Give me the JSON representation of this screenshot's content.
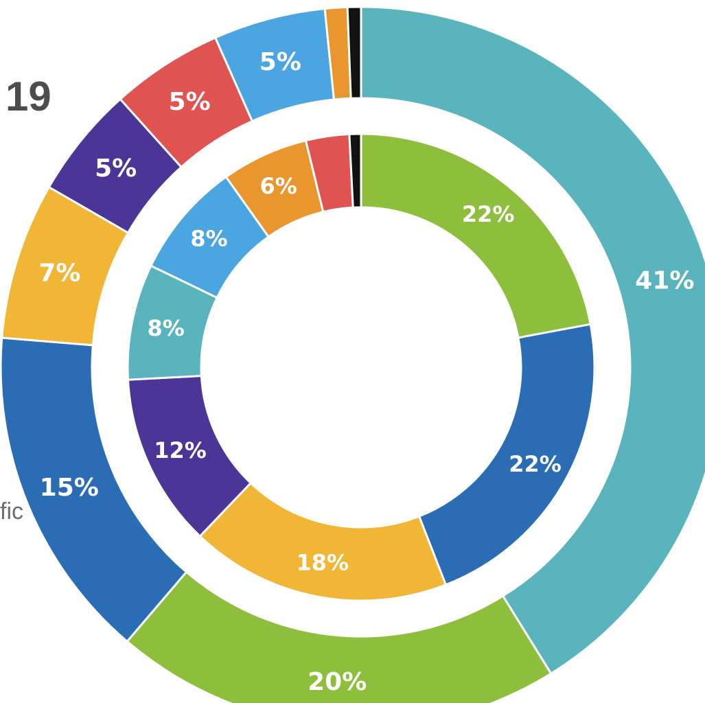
{
  "page": {
    "fragment_top": "19",
    "fragment_side": "fic"
  },
  "chart_data": {
    "type": "donut",
    "title": "",
    "rings": [
      {
        "name": "",
        "slices": [
          {
            "value": 41,
            "label": "41%",
            "color": "#5ab4bd"
          },
          {
            "value": 20,
            "label": "20%",
            "color": "#8dbf3c"
          },
          {
            "value": 15,
            "label": "15%",
            "color": "#2a6db4"
          },
          {
            "value": 7,
            "label": "7%",
            "color": "#f2b637"
          },
          {
            "value": 5,
            "label": "5%",
            "color": "#4b3596"
          },
          {
            "value": 5,
            "label": "5%",
            "color": "#df5350"
          },
          {
            "value": 5,
            "label": "5%",
            "color": "#4ba5e0"
          },
          {
            "value": 1,
            "label": "",
            "color": "#ea962f"
          },
          {
            "value": 0.6,
            "label": "",
            "color": "#111111"
          }
        ]
      },
      {
        "name": "",
        "slices": [
          {
            "value": 22,
            "label": "22%",
            "color": "#8dbf3c"
          },
          {
            "value": 22,
            "label": "22%",
            "color": "#2a6db4"
          },
          {
            "value": 18,
            "label": "18%",
            "color": "#f2b637"
          },
          {
            "value": 12,
            "label": "12%",
            "color": "#4b3596"
          },
          {
            "value": 8,
            "label": "8%",
            "color": "#5ab4bd"
          },
          {
            "value": 8,
            "label": "8%",
            "color": "#4ba5e0"
          },
          {
            "value": 6,
            "label": "6%",
            "color": "#ea962f"
          },
          {
            "value": 3,
            "label": "",
            "color": "#df5350"
          },
          {
            "value": 0.8,
            "label": "",
            "color": "#111111"
          }
        ]
      }
    ]
  }
}
